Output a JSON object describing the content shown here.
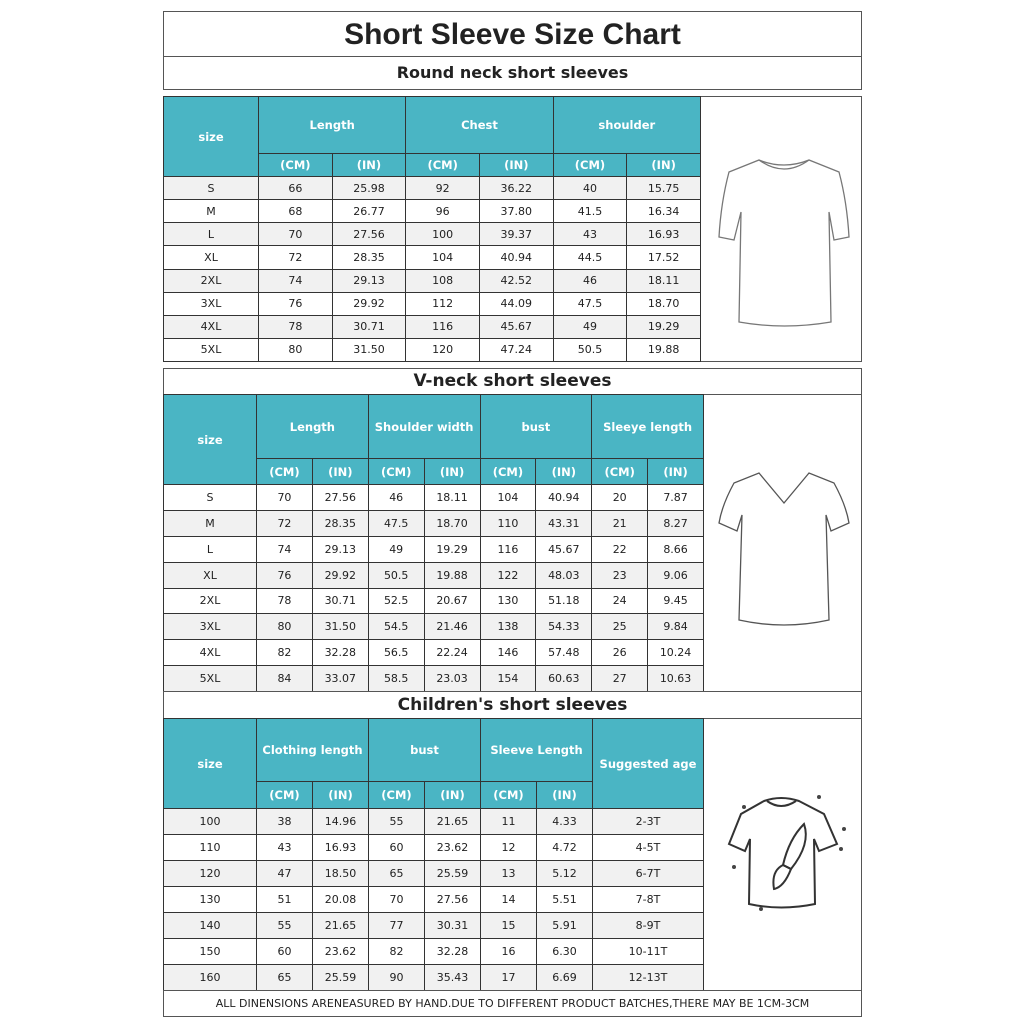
{
  "title": "Short Sleeve Size Chart",
  "accent_color": "#4ab5c4",
  "round_neck": {
    "heading": "Round neck short sleeves",
    "size_label": "size",
    "groups": [
      "Length",
      "Chest",
      "shoulder"
    ],
    "units": [
      "(CM)",
      "(IN)",
      "(CM)",
      "(IN)",
      "(CM)",
      "(IN)"
    ],
    "rows": [
      [
        "S",
        "66",
        "25.98",
        "92",
        "36.22",
        "40",
        "15.75"
      ],
      [
        "M",
        "68",
        "26.77",
        "96",
        "37.80",
        "41.5",
        "16.34"
      ],
      [
        "L",
        "70",
        "27.56",
        "100",
        "39.37",
        "43",
        "16.93"
      ],
      [
        "XL",
        "72",
        "28.35",
        "104",
        "40.94",
        "44.5",
        "17.52"
      ],
      [
        "2XL",
        "74",
        "29.13",
        "108",
        "42.52",
        "46",
        "18.11"
      ],
      [
        "3XL",
        "76",
        "29.92",
        "112",
        "44.09",
        "47.5",
        "18.70"
      ],
      [
        "4XL",
        "78",
        "30.71",
        "116",
        "45.67",
        "49",
        "19.29"
      ],
      [
        "5XL",
        "80",
        "31.50",
        "120",
        "47.24",
        "50.5",
        "19.88"
      ]
    ],
    "image_icon": "round-neck-tshirt-icon"
  },
  "v_neck": {
    "heading": "V-neck    short    sleeves",
    "size_label": "size",
    "groups": [
      "Length",
      "Shoulder width",
      "bust",
      "Sleeye length"
    ],
    "units": [
      "(CM)",
      "(IN)",
      "(CM)",
      "(IN)",
      "(CM)",
      "(IN)",
      "(CM)",
      "(IN)"
    ],
    "rows": [
      [
        "S",
        "70",
        "27.56",
        "46",
        "18.11",
        "104",
        "40.94",
        "20",
        "7.87"
      ],
      [
        "M",
        "72",
        "28.35",
        "47.5",
        "18.70",
        "110",
        "43.31",
        "21",
        "8.27"
      ],
      [
        "L",
        "74",
        "29.13",
        "49",
        "19.29",
        "116",
        "45.67",
        "22",
        "8.66"
      ],
      [
        "XL",
        "76",
        "29.92",
        "50.5",
        "19.88",
        "122",
        "48.03",
        "23",
        "9.06"
      ],
      [
        "2XL",
        "78",
        "30.71",
        "52.5",
        "20.67",
        "130",
        "51.18",
        "24",
        "9.45"
      ],
      [
        "3XL",
        "80",
        "31.50",
        "54.5",
        "21.46",
        "138",
        "54.33",
        "25",
        "9.84"
      ],
      [
        "4XL",
        "82",
        "32.28",
        "56.5",
        "22.24",
        "146",
        "57.48",
        "26",
        "10.24"
      ],
      [
        "5XL",
        "84",
        "33.07",
        "58.5",
        "23.03",
        "154",
        "60.63",
        "27",
        "10.63"
      ]
    ],
    "image_icon": "v-neck-tshirt-icon"
  },
  "children": {
    "heading": "Children's short sleeves",
    "size_label": "size",
    "groups": [
      "Clothing length",
      "bust",
      "Sleeve Length"
    ],
    "age_label": "Suggested age",
    "units": [
      "(CM)",
      "(IN)",
      "(CM)",
      "(IN)",
      "(CM)",
      "(IN)"
    ],
    "rows": [
      [
        "100",
        "38",
        "14.96",
        "55",
        "21.65",
        "11",
        "4.33",
        "2-3T"
      ],
      [
        "110",
        "43",
        "16.93",
        "60",
        "23.62",
        "12",
        "4.72",
        "4-5T"
      ],
      [
        "120",
        "47",
        "18.50",
        "65",
        "25.59",
        "13",
        "5.12",
        "6-7T"
      ],
      [
        "130",
        "51",
        "20.08",
        "70",
        "27.56",
        "14",
        "5.51",
        "7-8T"
      ],
      [
        "140",
        "55",
        "21.65",
        "77",
        "30.31",
        "15",
        "5.91",
        "8-9T"
      ],
      [
        "150",
        "60",
        "23.62",
        "82",
        "32.28",
        "16",
        "6.30",
        "10-11T"
      ],
      [
        "160",
        "65",
        "25.59",
        "90",
        "35.43",
        "17",
        "6.69",
        "12-13T"
      ]
    ],
    "image_icon": "kids-tshirt-paintbrush-icon"
  },
  "footer": "ALL DINENSIONS ARENEASURED BY HAND.DUE TO DIFFERENT PRODUCT BATCHES,THERE MAY BE 1CM-3CM"
}
